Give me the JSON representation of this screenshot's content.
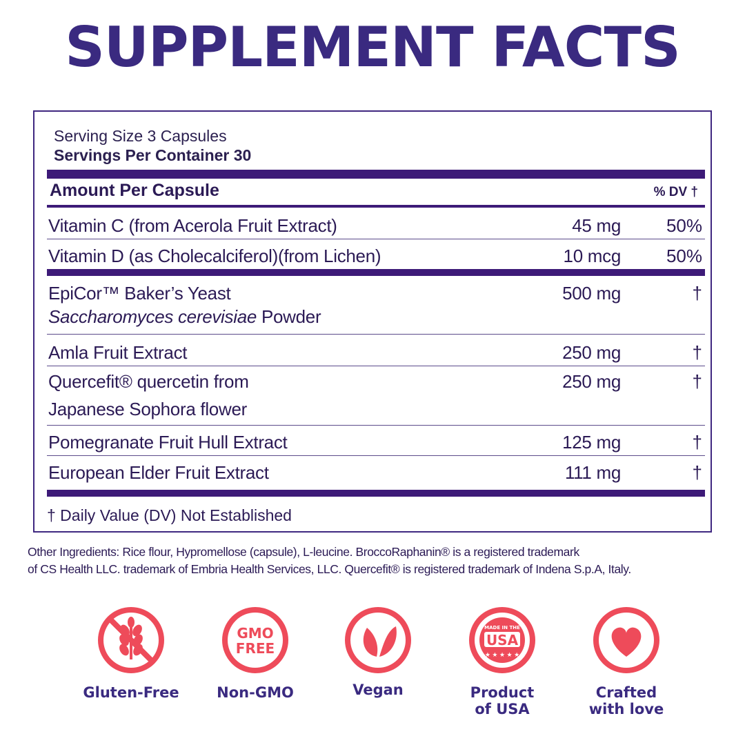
{
  "title": "SUPPLEMENT FACTS",
  "serving_size": "Serving Size 3 Capsules",
  "servings_per_container": "Servings Per Container 30",
  "header": {
    "amount_label": "Amount Per Capsule",
    "dv_label": "% DV †"
  },
  "rows": [
    {
      "name": "Vitamin C (from Acerola Fruit Extract)",
      "amount": "45 mg",
      "dv": "50%"
    },
    {
      "name": "Vitamin D (as Cholecalciferol)(from Lichen)",
      "amount": "10 mcg",
      "dv": "50%"
    },
    {
      "name": "EpiCor™ Baker’s Yeast",
      "name_line2_italic": "Saccharomyces cerevisiae",
      "name_line2_rest": " Powder",
      "amount": "500 mg",
      "dv": "†"
    },
    {
      "name": "Amla Fruit Extract",
      "amount": "250 mg",
      "dv": "†"
    },
    {
      "name": "Quercefit® quercetin from",
      "name_line2": "Japanese Sophora flower",
      "amount": "250 mg",
      "dv": "†"
    },
    {
      "name": "Pomegranate Fruit Hull Extract",
      "amount": "125 mg",
      "dv": "†"
    },
    {
      "name": "European Elder Fruit Extract",
      "amount": "111 mg",
      "dv": "†"
    }
  ],
  "footnote": "† Daily Value (DV) Not Established",
  "other_ingredients": {
    "line1": "Other Ingredients: Rice flour, Hypromellose (capsule), L-leucine.  BroccoRaphanin® is a  registered trademark",
    "line2": "of CS Health LLC.  trademark of Embria Health Services, LLC. Quercefit®  is registered trademark of Indena S.p.A, Italy."
  },
  "badges": [
    {
      "icon": "gluten-free-icon",
      "label": "Gluten-Free"
    },
    {
      "icon": "gmo-free-icon",
      "label": "Non-GMO",
      "icon_text": "GMO FREE"
    },
    {
      "icon": "vegan-leaf-icon",
      "label": "Vegan"
    },
    {
      "icon": "made-in-usa-icon",
      "label": "Product of USA",
      "label_line1": "Product",
      "label_line2": "of USA",
      "icon_text_top": "MADE IN THE",
      "icon_text_main": "USA"
    },
    {
      "icon": "heart-icon",
      "label": "Crafted with love",
      "label_line1": "Crafted",
      "label_line2": "with love"
    }
  ],
  "colors": {
    "title": "#3a2a80",
    "border": "#3f2780",
    "rule": "#3d1a78",
    "badge": "#ee4b5a"
  }
}
